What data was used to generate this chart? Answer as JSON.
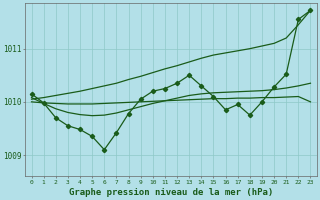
{
  "title": "Graphe pression niveau de la mer (hPa)",
  "bg_color": "#b3e0e8",
  "grid_color": "#8ec8c8",
  "line_color": "#1a5c1a",
  "xlim": [
    -0.5,
    23.5
  ],
  "ylim": [
    1008.6,
    1011.85
  ],
  "yticks": [
    1009,
    1010,
    1011
  ],
  "xticks": [
    0,
    1,
    2,
    3,
    4,
    5,
    6,
    7,
    8,
    9,
    10,
    11,
    12,
    13,
    14,
    15,
    16,
    17,
    18,
    19,
    20,
    21,
    22,
    23
  ],
  "zigzag": [
    1010.15,
    1009.98,
    1009.7,
    1009.55,
    1009.48,
    1009.35,
    1009.1,
    1009.42,
    1009.78,
    1010.05,
    1010.2,
    1010.25,
    1010.35,
    1010.5,
    1010.3,
    1010.1,
    1009.85,
    1009.95,
    1009.75,
    1010.0,
    1010.28,
    1010.52,
    1011.55,
    1011.72
  ],
  "diag_upper": [
    1010.05,
    1010.08,
    1010.12,
    1010.16,
    1010.2,
    1010.25,
    1010.3,
    1010.35,
    1010.42,
    1010.48,
    1010.55,
    1010.62,
    1010.68,
    1010.75,
    1010.82,
    1010.88,
    1010.92,
    1010.96,
    1011.0,
    1011.05,
    1011.1,
    1011.2,
    1011.45,
    1011.72
  ],
  "diag_lower": [
    1010.0,
    1009.98,
    1009.97,
    1009.96,
    1009.96,
    1009.96,
    1009.97,
    1009.98,
    1009.99,
    1010.0,
    1010.01,
    1010.02,
    1010.03,
    1010.04,
    1010.05,
    1010.06,
    1010.06,
    1010.07,
    1010.07,
    1010.08,
    1010.08,
    1010.09,
    1010.1,
    1010.0
  ],
  "smooth": [
    1010.08,
    1009.97,
    1009.87,
    1009.8,
    1009.76,
    1009.74,
    1009.75,
    1009.79,
    1009.85,
    1009.91,
    1009.97,
    1010.02,
    1010.07,
    1010.12,
    1010.15,
    1010.17,
    1010.18,
    1010.19,
    1010.2,
    1010.21,
    1010.23,
    1010.26,
    1010.3,
    1010.35
  ]
}
